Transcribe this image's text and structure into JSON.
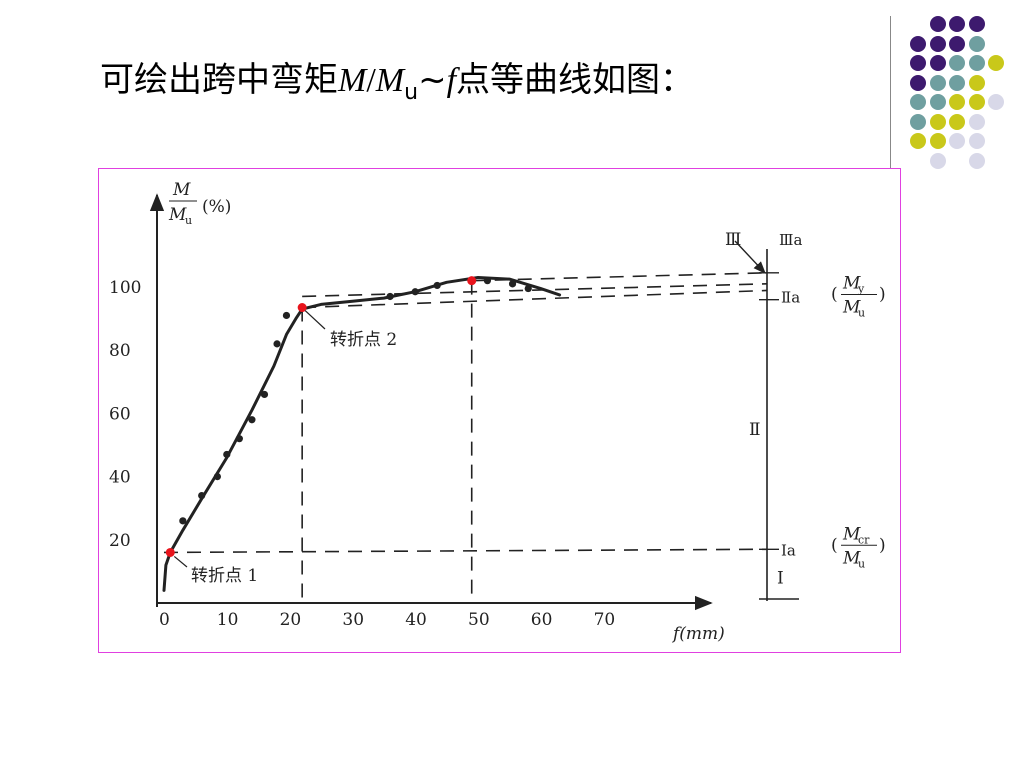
{
  "title": {
    "prefix": "可绘出跨中弯矩",
    "m": "M",
    "slash": "/",
    "mu": "M",
    "mu_sub": "u",
    "tilde": "~",
    "f": "f",
    "suffix": "点等曲线如图："
  },
  "decor_dots": {
    "colors": {
      "purple": "#3d1a6e",
      "teal": "#6f9fa0",
      "yellow": "#c9c81a",
      "lilac": "#d8d8e8"
    },
    "grid": [
      [
        "",
        "purple",
        "purple",
        "purple",
        ""
      ],
      [
        "purple",
        "purple",
        "purple",
        "teal",
        ""
      ],
      [
        "purple",
        "purple",
        "teal",
        "teal",
        "yellow"
      ],
      [
        "purple",
        "teal",
        "teal",
        "yellow",
        ""
      ],
      [
        "teal",
        "teal",
        "yellow",
        "yellow",
        "lilac"
      ],
      [
        "teal",
        "yellow",
        "yellow",
        "lilac",
        ""
      ],
      [
        "yellow",
        "yellow",
        "lilac",
        "lilac",
        ""
      ],
      [
        "",
        "lilac",
        "",
        "lilac",
        ""
      ]
    ]
  },
  "chart_data": {
    "type": "line",
    "ylabel_top": "M",
    "ylabel_bottom": "Mu",
    "ylabel_unit": "(%)",
    "xlabel": "f(mm)",
    "x_ticks": [
      "0",
      "10",
      "20",
      "30",
      "40",
      "50",
      "60",
      "70"
    ],
    "y_ticks": [
      "20",
      "40",
      "60",
      "80",
      "100"
    ],
    "xlim": [
      0,
      85
    ],
    "ylim": [
      0,
      130
    ],
    "curve": {
      "x": [
        0,
        0.3,
        1,
        3,
        6,
        10,
        14,
        17.5,
        19.5,
        21,
        22,
        25,
        30,
        35,
        40,
        45,
        50,
        55,
        60,
        63
      ],
      "y": [
        4,
        12,
        16,
        23,
        33,
        46,
        61,
        75,
        85,
        90,
        93,
        94.5,
        95.5,
        96.5,
        98.5,
        101.5,
        103,
        102.5,
        99.5,
        97.5
      ]
    },
    "test_points": {
      "x": [
        3,
        6,
        8.5,
        10,
        12,
        14,
        16,
        18,
        19.5,
        36,
        40,
        43.5,
        51.5,
        55.5,
        58
      ],
      "y": [
        26,
        34,
        40,
        47,
        52,
        58,
        66,
        82,
        91,
        97,
        98.5,
        100.5,
        102,
        101,
        99.5
      ]
    },
    "turning_points": [
      {
        "label": "转折点 1",
        "x": 1,
        "y": 16
      },
      {
        "label": "转折点 2",
        "x": 22,
        "y": 93.5
      },
      {
        "label": "",
        "x": 49,
        "y": 102
      }
    ],
    "reference_levels": [
      {
        "label": "Ⅰa",
        "y": 17,
        "fraction_num": "Mcr",
        "fraction_den": "Mu"
      },
      {
        "label": "Ⅱa",
        "y": 97,
        "fraction_num": "My",
        "fraction_den": "Mu"
      },
      {
        "label": "Ⅲa",
        "y": 104.5,
        "fraction_num": "",
        "fraction_den": ""
      }
    ],
    "stage_labels": [
      {
        "label": "Ⅰ",
        "y": 8
      },
      {
        "label": "Ⅱ",
        "y": 55
      },
      {
        "label": "Ⅲ",
        "y": 114
      }
    ]
  }
}
